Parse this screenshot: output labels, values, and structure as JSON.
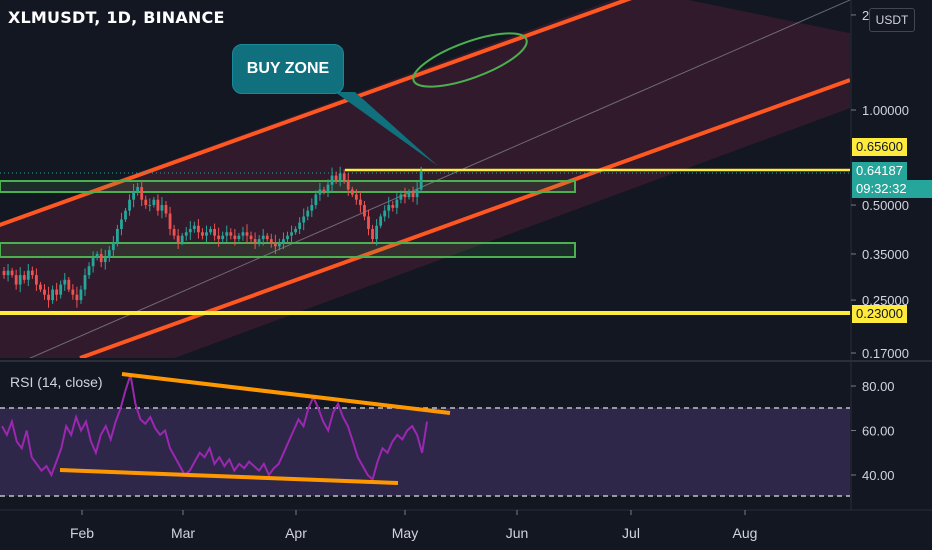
{
  "header": {
    "symbol_line": "XLMUSDT, 1D, BINANCE",
    "currency": "USDT"
  },
  "callout": {
    "text": "BUY ZONE"
  },
  "rsi_panel": {
    "label": "RSI (14, close)"
  },
  "price_tags": {
    "resistance": "0.65600",
    "last": "0.64187",
    "countdown": "09:32:32",
    "support": "0.23000"
  },
  "colors": {
    "background": "#131722",
    "channel": "#ff5722",
    "level_line": "#ffeb3b",
    "zone_box": "#4caf50",
    "rsi_line": "#9c27b0",
    "trend_line": "#ff9800",
    "up_candle": "#26a69a",
    "down_candle": "#ef5350",
    "callout": "#10707e"
  },
  "chart_data": [
    {
      "type": "candlestick",
      "title": "XLMUSDT, 1D, BINANCE",
      "scale": "log",
      "ylim": [
        0.16,
        2.1
      ],
      "x_axis": {
        "tick_labels": [
          "Feb",
          "Mar",
          "Apr",
          "May",
          "Jun",
          "Jul",
          "Aug"
        ]
      },
      "y_axis": {
        "tick_labels": [
          "2",
          "1.00000",
          "0.50000",
          "0.35000",
          "0.25000",
          "0.17000"
        ],
        "tick_values": [
          2,
          1.0,
          0.5,
          0.35,
          0.25,
          0.17
        ]
      },
      "horizontal_levels": [
        0.656,
        0.23
      ],
      "zones": [
        {
          "from": 0.53,
          "to": 0.58
        },
        {
          "from": 0.33,
          "to": 0.37
        }
      ],
      "last_price": 0.64187,
      "closes": [
        0.3,
        0.31,
        0.3,
        0.28,
        0.3,
        0.29,
        0.31,
        0.3,
        0.28,
        0.27,
        0.26,
        0.25,
        0.27,
        0.26,
        0.28,
        0.29,
        0.27,
        0.26,
        0.25,
        0.27,
        0.3,
        0.32,
        0.34,
        0.35,
        0.33,
        0.34,
        0.36,
        0.38,
        0.42,
        0.45,
        0.48,
        0.52,
        0.55,
        0.57,
        0.52,
        0.5,
        0.5,
        0.52,
        0.48,
        0.5,
        0.47,
        0.42,
        0.4,
        0.38,
        0.4,
        0.41,
        0.42,
        0.43,
        0.41,
        0.4,
        0.41,
        0.42,
        0.4,
        0.39,
        0.4,
        0.41,
        0.4,
        0.39,
        0.4,
        0.41,
        0.4,
        0.39,
        0.38,
        0.39,
        0.4,
        0.39,
        0.38,
        0.37,
        0.38,
        0.39,
        0.4,
        0.41,
        0.42,
        0.44,
        0.46,
        0.48,
        0.5,
        0.54,
        0.56,
        0.55,
        0.58,
        0.62,
        0.6,
        0.63,
        0.6,
        0.56,
        0.54,
        0.52,
        0.5,
        0.46,
        0.42,
        0.39,
        0.43,
        0.46,
        0.48,
        0.5,
        0.49,
        0.52,
        0.54,
        0.53,
        0.55,
        0.53,
        0.56,
        0.64187
      ]
    },
    {
      "type": "line",
      "title": "RSI (14, close)",
      "ylim": [
        25,
        90
      ],
      "y_axis": {
        "tick_labels": [
          "80.00",
          "60.00",
          "40.00"
        ],
        "tick_values": [
          80,
          60,
          40
        ]
      },
      "bands": [
        70,
        30
      ],
      "values": [
        62,
        58,
        64,
        55,
        52,
        60,
        48,
        45,
        42,
        44,
        40,
        46,
        52,
        62,
        58,
        66,
        60,
        64,
        55,
        50,
        58,
        62,
        56,
        64,
        70,
        78,
        85,
        72,
        65,
        63,
        66,
        61,
        58,
        60,
        52,
        48,
        44,
        40,
        42,
        46,
        50,
        48,
        52,
        45,
        48,
        44,
        47,
        42,
        45,
        43,
        46,
        44,
        42,
        45,
        40,
        43,
        45,
        50,
        55,
        60,
        65,
        62,
        70,
        75,
        70,
        64,
        60,
        68,
        72,
        66,
        62,
        55,
        48,
        44,
        40,
        38,
        46,
        52,
        50,
        55,
        58,
        56,
        60,
        62,
        58,
        50,
        64
      ]
    }
  ]
}
